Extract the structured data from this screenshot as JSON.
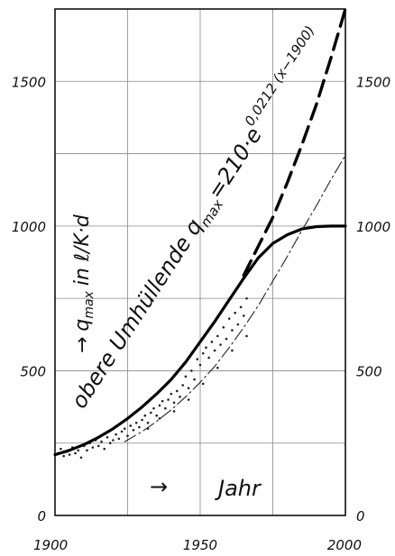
{
  "chart_data": {
    "type": "line",
    "title": "",
    "xlabel": "Jahr",
    "ylabel": "q_max in ℓ/K·d",
    "xlim": [
      1900,
      2000
    ],
    "ylim": [
      0,
      1750
    ],
    "x_ticks": [
      1900,
      1950,
      2000
    ],
    "y_ticks": [
      0,
      500,
      1000,
      1500
    ],
    "grid": true,
    "annotations": {
      "envelope_text": "obere Umhüllende q",
      "envelope_sub": "max",
      "formula_main": "=210·e",
      "formula_exp": "0,0212 (x−1900)",
      "axis_arrow": "→",
      "y_main": "q",
      "y_sub": "max",
      "y_unit": "in ℓ/K·d",
      "x_label": "Jahr"
    },
    "series": [
      {
        "style": "thick-solid",
        "x": [
          1900,
          1905,
          1910,
          1915,
          1920,
          1925,
          1930,
          1935,
          1940,
          1945,
          1950,
          1955,
          1960,
          1965,
          1970,
          1975,
          1980,
          1985,
          1990,
          1995,
          2000
        ],
        "y": [
          210,
          225,
          245,
          270,
          300,
          335,
          375,
          420,
          470,
          530,
          600,
          670,
          745,
          820,
          890,
          940,
          970,
          990,
          998,
          1000,
          1000
        ]
      },
      {
        "style": "thick-dashed",
        "x": [
          1965,
          1970,
          1975,
          1980,
          1985,
          1990,
          1995,
          2000
        ],
        "y": [
          830,
          930,
          1030,
          1150,
          1280,
          1420,
          1580,
          1750
        ]
      },
      {
        "style": "thin-dashdot",
        "x": [
          1924,
          1930,
          1935,
          1940,
          1945,
          1950,
          1955,
          1960,
          1965,
          1970,
          1975,
          1980,
          1985,
          1990,
          1995,
          2000
        ],
        "y": [
          255,
          290,
          325,
          365,
          410,
          460,
          515,
          580,
          650,
          725,
          810,
          895,
          985,
          1070,
          1160,
          1245
        ]
      }
    ],
    "scatter_points": [
      [
        1901,
        215
      ],
      [
        1902,
        230
      ],
      [
        1903,
        205
      ],
      [
        1904,
        220
      ],
      [
        1905,
        210
      ],
      [
        1906,
        235
      ],
      [
        1907,
        215
      ],
      [
        1908,
        225
      ],
      [
        1909,
        200
      ],
      [
        1910,
        240
      ],
      [
        1911,
        225
      ],
      [
        1912,
        250
      ],
      [
        1913,
        235
      ],
      [
        1914,
        260
      ],
      [
        1915,
        240
      ],
      [
        1916,
        255
      ],
      [
        1917,
        230
      ],
      [
        1918,
        270
      ],
      [
        1919,
        250
      ],
      [
        1920,
        260
      ],
      [
        1921,
        280
      ],
      [
        1922,
        265
      ],
      [
        1923,
        290
      ],
      [
        1924,
        300
      ],
      [
        1925,
        275
      ],
      [
        1926,
        310
      ],
      [
        1927,
        295
      ],
      [
        1928,
        320
      ],
      [
        1929,
        305
      ],
      [
        1930,
        330
      ],
      [
        1931,
        345
      ],
      [
        1932,
        320
      ],
      [
        1933,
        355
      ],
      [
        1934,
        370
      ],
      [
        1935,
        345
      ],
      [
        1936,
        380
      ],
      [
        1937,
        395
      ],
      [
        1938,
        370
      ],
      [
        1939,
        400
      ],
      [
        1940,
        420
      ],
      [
        1941,
        390
      ],
      [
        1942,
        430
      ],
      [
        1943,
        410
      ],
      [
        1944,
        450
      ],
      [
        1945,
        480
      ],
      [
        1946,
        440
      ],
      [
        1947,
        500
      ],
      [
        1948,
        470
      ],
      [
        1949,
        540
      ],
      [
        1950,
        520
      ],
      [
        1951,
        560
      ],
      [
        1952,
        580
      ],
      [
        1953,
        545
      ],
      [
        1954,
        600
      ],
      [
        1955,
        570
      ],
      [
        1956,
        620
      ],
      [
        1957,
        590
      ],
      [
        1958,
        650
      ],
      [
        1959,
        610
      ],
      [
        1960,
        680
      ],
      [
        1961,
        640
      ],
      [
        1962,
        700
      ],
      [
        1963,
        660
      ],
      [
        1964,
        720
      ],
      [
        1965,
        690
      ],
      [
        1966,
        750
      ],
      [
        1932,
        300
      ],
      [
        1936,
        335
      ],
      [
        1941,
        360
      ],
      [
        1946,
        400
      ],
      [
        1951,
        455
      ],
      [
        1956,
        510
      ],
      [
        1961,
        570
      ],
      [
        1966,
        620
      ]
    ]
  }
}
